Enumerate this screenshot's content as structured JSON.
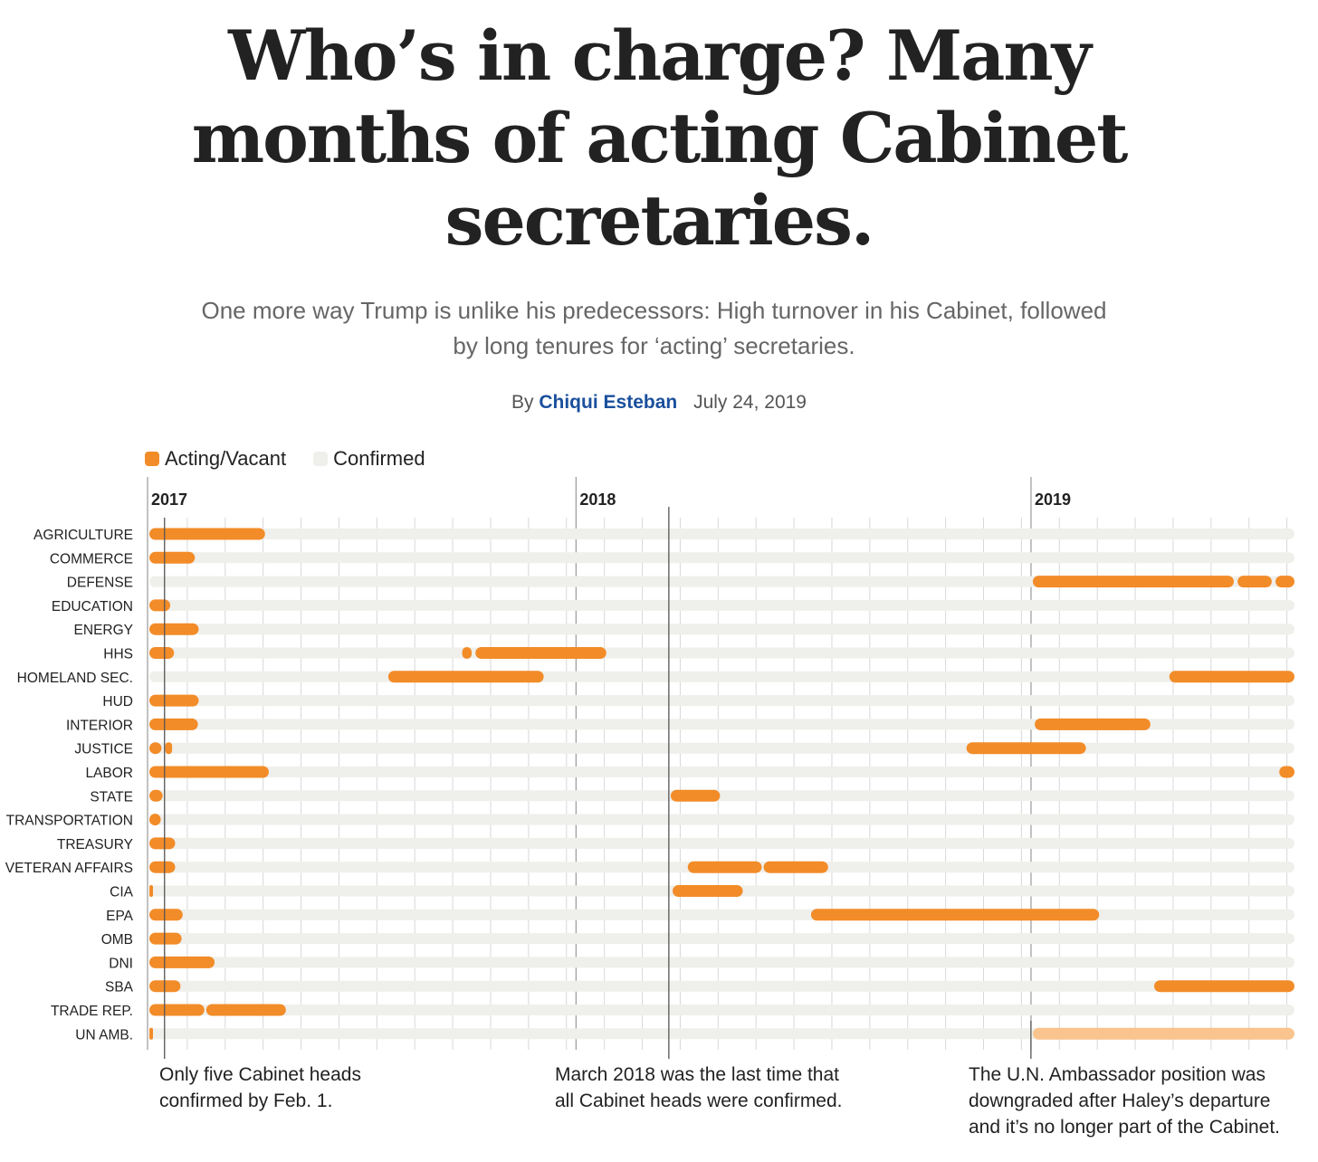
{
  "header": {
    "title_lines": [
      "Who’s in charge? Many",
      "months of acting Cabinet",
      "secretaries."
    ],
    "subtitle_lines": [
      "One more way Trump is unlike his predecessors: High turnover in his Cabinet, followed",
      "by long tenures for ‘acting’ secretaries."
    ],
    "byline_prefix": "By",
    "author": "Chiqui Esteban",
    "date": "July 24, 2019"
  },
  "legend": {
    "acting_label": "Acting/Vacant",
    "confirmed_label": "Confirmed"
  },
  "colors": {
    "acting": "#f28c28",
    "confirmed": "#efefeb",
    "downgraded": "#f9c48e",
    "grid": "#d8d8d8",
    "marker": "#555555"
  },
  "annotations": [
    {
      "lines": [
        "Only five Cabinet heads",
        "confirmed by Feb. 1."
      ]
    },
    {
      "lines": [
        "March 2018 was the last time that",
        "all Cabinet heads were confirmed."
      ]
    },
    {
      "lines": [
        "The U.N. Ambassador position was",
        "downgraded after Haley’s departure",
        "and it’s no longer part of the Cabinet."
      ]
    }
  ],
  "chart_data": {
    "type": "timeline",
    "x_unit": "month",
    "x_start": "2017-01",
    "x_end": "2019-07",
    "year_labels": [
      {
        "label": "2017",
        "month": 0
      },
      {
        "label": "2018",
        "month": 11.3
      },
      {
        "label": "2019",
        "month": 23.3
      }
    ],
    "markers": [
      {
        "name": "feb-1-2017",
        "month": 0.4
      },
      {
        "name": "march-2018",
        "month": 13.7
      },
      {
        "name": "un-downgrade",
        "month": 23.25
      }
    ],
    "rows": [
      {
        "label": "AGRICULTURE",
        "acting": [
          [
            0,
            3.05
          ]
        ]
      },
      {
        "label": "COMMERCE",
        "acting": [
          [
            0,
            1.2
          ]
        ]
      },
      {
        "label": "DEFENSE",
        "acting": [
          [
            23.3,
            28.6
          ],
          [
            28.7,
            29.6
          ],
          [
            29.7,
            30.2
          ]
        ]
      },
      {
        "label": "EDUCATION",
        "acting": [
          [
            0,
            0.55
          ]
        ]
      },
      {
        "label": "ENERGY",
        "acting": [
          [
            0,
            1.3
          ]
        ]
      },
      {
        "label": "HHS",
        "acting": [
          [
            0,
            0.65
          ],
          [
            8.25,
            8.5
          ],
          [
            8.6,
            12.05
          ]
        ]
      },
      {
        "label": "HOMELAND SEC.",
        "acting": [
          [
            6.3,
            10.4
          ],
          [
            26.9,
            30.2
          ]
        ]
      },
      {
        "label": "HUD",
        "acting": [
          [
            0,
            1.3
          ]
        ]
      },
      {
        "label": "INTERIOR",
        "acting": [
          [
            0,
            1.28
          ],
          [
            23.35,
            26.4
          ]
        ]
      },
      {
        "label": "JUSTICE",
        "acting": [
          [
            0,
            0.32
          ],
          [
            0.42,
            0.6
          ],
          [
            21.55,
            24.7
          ]
        ]
      },
      {
        "label": "LABOR",
        "acting": [
          [
            0,
            3.15
          ],
          [
            29.8,
            30.2
          ]
        ]
      },
      {
        "label": "STATE",
        "acting": [
          [
            0,
            0.35
          ],
          [
            13.75,
            15.05
          ]
        ]
      },
      {
        "label": "TRANSPORTATION",
        "acting": [
          [
            0,
            0.3
          ]
        ]
      },
      {
        "label": "TREASURY",
        "acting": [
          [
            0,
            0.68
          ]
        ]
      },
      {
        "label": "VETERAN AFFAIRS",
        "acting": [
          [
            0,
            0.68
          ],
          [
            14.2,
            16.15
          ],
          [
            16.2,
            17.9
          ]
        ]
      },
      {
        "label": "CIA",
        "acting": [
          [
            0,
            0.05
          ],
          [
            13.8,
            15.65
          ]
        ]
      },
      {
        "label": "EPA",
        "acting": [
          [
            0,
            0.88
          ],
          [
            17.45,
            25.05
          ]
        ]
      },
      {
        "label": "OMB",
        "acting": [
          [
            0,
            0.85
          ]
        ]
      },
      {
        "label": "DNI",
        "acting": [
          [
            0,
            1.72
          ]
        ]
      },
      {
        "label": "SBA",
        "acting": [
          [
            0,
            0.82
          ],
          [
            26.5,
            30.2
          ]
        ]
      },
      {
        "label": "TRADE REP.",
        "acting": [
          [
            0,
            1.45
          ],
          [
            1.5,
            3.6
          ]
        ]
      },
      {
        "label": "UN AMB.",
        "acting": [
          [
            0,
            0.08
          ]
        ],
        "downgraded": [
          [
            23.3,
            30.2
          ]
        ]
      }
    ]
  }
}
